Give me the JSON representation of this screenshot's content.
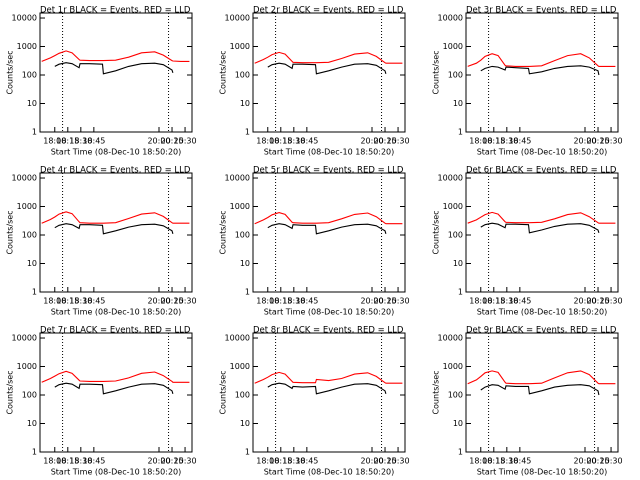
{
  "chart_data": [
    {
      "type": "line",
      "title": "Det 1r BLACK = Events, RED = LLD",
      "xlabel": "Start Time (08-Dec-10 18:50:20)",
      "ylabel": "Counts/sec",
      "log_y": true,
      "x": [
        "17:45",
        "17:55",
        "18:00",
        "18:05",
        "18:13",
        "18:20",
        "18:28",
        "18:29",
        "18:40",
        "18:55",
        "18:56",
        "19:10",
        "19:25",
        "19:40",
        "19:55",
        "20:05",
        "20:15",
        "20:16",
        "20:25",
        "20:35"
      ],
      "series": [
        {
          "name": "LLD",
          "color": "#ff0000",
          "values": [
            300,
            400,
            480,
            580,
            700,
            600,
            350,
            330,
            320,
            320,
            320,
            330,
            420,
            600,
            650,
            500,
            320,
            310,
            300,
            300
          ]
        },
        {
          "name": "Events",
          "color": "#000000",
          "values": [
            null,
            null,
            200,
            240,
            270,
            250,
            180,
            250,
            250,
            240,
            110,
            140,
            200,
            250,
            260,
            230,
            150,
            120,
            null,
            null
          ]
        }
      ],
      "xlim": [
        "17:43",
        "20:38"
      ],
      "xticks": [
        "18:00",
        "18:15",
        "18:30",
        "18:45",
        "20:00",
        "20:15",
        "20:30"
      ],
      "ylim": [
        1,
        15000
      ],
      "yticks": [
        1,
        10,
        100,
        1000,
        10000
      ],
      "vlines": [
        "18:09",
        "20:11"
      ]
    },
    {
      "type": "line",
      "title": "Det 2r BLACK = Events, RED = LLD",
      "xlabel": "Start Time (08-Dec-10 18:50:20)",
      "ylabel": "Counts/sec",
      "log_y": true,
      "x": [
        "17:45",
        "17:55",
        "18:00",
        "18:05",
        "18:13",
        "18:20",
        "18:28",
        "18:29",
        "18:40",
        "18:55",
        "18:56",
        "19:10",
        "19:25",
        "19:40",
        "19:55",
        "20:05",
        "20:15",
        "20:16",
        "20:25",
        "20:35"
      ],
      "series": [
        {
          "name": "LLD",
          "color": "#ff0000",
          "values": [
            260,
            350,
            420,
            520,
            620,
            540,
            300,
            280,
            270,
            270,
            270,
            280,
            380,
            540,
            600,
            450,
            270,
            260,
            260,
            260
          ]
        },
        {
          "name": "Events",
          "color": "#000000",
          "values": [
            null,
            null,
            190,
            230,
            260,
            240,
            170,
            240,
            240,
            230,
            110,
            140,
            190,
            240,
            250,
            220,
            140,
            110,
            null,
            null
          ]
        }
      ],
      "xlim": [
        "17:43",
        "20:38"
      ],
      "xticks": [
        "18:00",
        "18:15",
        "18:30",
        "18:45",
        "20:00",
        "20:15",
        "20:30"
      ],
      "ylim": [
        1,
        15000
      ],
      "yticks": [
        1,
        10,
        100,
        1000,
        10000
      ],
      "vlines": [
        "18:09",
        "20:11"
      ]
    },
    {
      "type": "line",
      "title": "Det 3r BLACK = Events, RED = LLD",
      "xlabel": "Start Time (08-Dec-10 18:50:20)",
      "ylabel": "Counts/sec",
      "log_y": true,
      "x": [
        "17:45",
        "17:55",
        "18:00",
        "18:05",
        "18:13",
        "18:20",
        "18:28",
        "18:29",
        "18:40",
        "18:55",
        "18:56",
        "19:10",
        "19:25",
        "19:40",
        "19:55",
        "20:05",
        "20:15",
        "20:16",
        "20:25",
        "20:35"
      ],
      "series": [
        {
          "name": "LLD",
          "color": "#ff0000",
          "values": [
            200,
            260,
            330,
            450,
            560,
            480,
            220,
            210,
            200,
            200,
            200,
            210,
            320,
            480,
            560,
            400,
            210,
            200,
            200,
            200
          ]
        },
        {
          "name": "Events",
          "color": "#000000",
          "values": [
            null,
            null,
            140,
            170,
            200,
            190,
            150,
            190,
            180,
            170,
            110,
            130,
            170,
            200,
            210,
            190,
            140,
            100,
            null,
            null
          ]
        }
      ],
      "xlim": [
        "17:43",
        "20:38"
      ],
      "xticks": [
        "18:00",
        "18:15",
        "18:30",
        "18:45",
        "20:00",
        "20:15",
        "20:30"
      ],
      "ylim": [
        1,
        15000
      ],
      "yticks": [
        1,
        10,
        100,
        1000,
        10000
      ],
      "vlines": [
        "18:09",
        "20:11"
      ]
    },
    {
      "type": "line",
      "title": "Det 4r BLACK = Events, RED = LLD",
      "xlabel": "Start Time (08-Dec-10 18:50:20)",
      "ylabel": "Counts/sec",
      "log_y": true,
      "x": [
        "17:45",
        "17:55",
        "18:00",
        "18:05",
        "18:13",
        "18:20",
        "18:28",
        "18:29",
        "18:40",
        "18:55",
        "18:56",
        "19:10",
        "19:25",
        "19:40",
        "19:55",
        "20:05",
        "20:15",
        "20:16",
        "20:25",
        "20:35"
      ],
      "series": [
        {
          "name": "LLD",
          "color": "#ff0000",
          "values": [
            260,
            350,
            430,
            540,
            650,
            560,
            290,
            270,
            260,
            260,
            260,
            270,
            380,
            540,
            600,
            450,
            270,
            260,
            260,
            260
          ]
        },
        {
          "name": "Events",
          "color": "#000000",
          "values": [
            null,
            null,
            180,
            220,
            250,
            230,
            170,
            230,
            230,
            220,
            110,
            140,
            190,
            230,
            240,
            210,
            140,
            110,
            null,
            null
          ]
        }
      ],
      "xlim": [
        "17:43",
        "20:38"
      ],
      "xticks": [
        "18:00",
        "18:15",
        "18:30",
        "18:45",
        "20:00",
        "20:15",
        "20:30"
      ],
      "ylim": [
        1,
        15000
      ],
      "yticks": [
        1,
        10,
        100,
        1000,
        10000
      ],
      "vlines": [
        "18:09",
        "20:11"
      ]
    },
    {
      "type": "line",
      "title": "Det 5r BLACK = Events, RED = LLD",
      "xlabel": "Start Time (08-Dec-10 18:50:20)",
      "ylabel": "Counts/sec",
      "log_y": true,
      "x": [
        "17:45",
        "17:55",
        "18:00",
        "18:05",
        "18:13",
        "18:20",
        "18:28",
        "18:29",
        "18:40",
        "18:55",
        "18:56",
        "19:10",
        "19:25",
        "19:40",
        "19:55",
        "20:05",
        "20:15",
        "20:16",
        "20:25",
        "20:35"
      ],
      "series": [
        {
          "name": "LLD",
          "color": "#ff0000",
          "values": [
            250,
            340,
            410,
            510,
            610,
            530,
            280,
            270,
            260,
            260,
            260,
            270,
            370,
            530,
            590,
            440,
            260,
            250,
            250,
            250
          ]
        },
        {
          "name": "Events",
          "color": "#000000",
          "values": [
            null,
            null,
            180,
            220,
            250,
            230,
            170,
            230,
            220,
            220,
            110,
            140,
            190,
            230,
            240,
            210,
            140,
            110,
            null,
            null
          ]
        }
      ],
      "xlim": [
        "17:43",
        "20:38"
      ],
      "xticks": [
        "18:00",
        "18:15",
        "18:30",
        "18:45",
        "20:00",
        "20:15",
        "20:30"
      ],
      "ylim": [
        1,
        15000
      ],
      "yticks": [
        1,
        10,
        100,
        1000,
        10000
      ],
      "vlines": [
        "18:09",
        "20:11"
      ]
    },
    {
      "type": "line",
      "title": "Det 6r BLACK = Events, RED = LLD",
      "xlabel": "Start Time (08-Dec-10 18:50:20)",
      "ylabel": "Counts/sec",
      "log_y": true,
      "x": [
        "17:45",
        "17:55",
        "18:00",
        "18:05",
        "18:13",
        "18:20",
        "18:28",
        "18:29",
        "18:40",
        "18:55",
        "18:56",
        "19:10",
        "19:25",
        "19:40",
        "19:55",
        "20:05",
        "20:15",
        "20:16",
        "20:25",
        "20:35"
      ],
      "series": [
        {
          "name": "LLD",
          "color": "#ff0000",
          "values": [
            260,
            340,
            420,
            520,
            620,
            540,
            290,
            280,
            270,
            270,
            270,
            280,
            370,
            520,
            600,
            440,
            270,
            260,
            260,
            260
          ]
        },
        {
          "name": "Events",
          "color": "#000000",
          "values": [
            null,
            null,
            190,
            230,
            260,
            240,
            180,
            240,
            240,
            230,
            120,
            150,
            200,
            240,
            250,
            220,
            150,
            120,
            null,
            null
          ]
        }
      ],
      "xlim": [
        "17:43",
        "20:38"
      ],
      "xticks": [
        "18:00",
        "18:15",
        "18:30",
        "18:45",
        "20:00",
        "20:15",
        "20:30"
      ],
      "ylim": [
        1,
        15000
      ],
      "yticks": [
        1,
        10,
        100,
        1000,
        10000
      ],
      "vlines": [
        "18:09",
        "20:11"
      ]
    },
    {
      "type": "line",
      "title": "Det 7r BLACK = Events, RED = LLD",
      "xlabel": "Start Time (08-Dec-10 18:50:20)",
      "ylabel": "Counts/sec",
      "log_y": true,
      "x": [
        "17:45",
        "17:55",
        "18:00",
        "18:05",
        "18:13",
        "18:20",
        "18:28",
        "18:29",
        "18:40",
        "18:55",
        "18:56",
        "19:10",
        "19:25",
        "19:40",
        "19:55",
        "20:05",
        "20:15",
        "20:16",
        "20:25",
        "20:35"
      ],
      "series": [
        {
          "name": "LLD",
          "color": "#ff0000",
          "values": [
            280,
            380,
            460,
            560,
            680,
            580,
            330,
            310,
            300,
            300,
            300,
            310,
            400,
            580,
            640,
            480,
            300,
            280,
            280,
            280
          ]
        },
        {
          "name": "Events",
          "color": "#000000",
          "values": [
            null,
            null,
            190,
            230,
            260,
            240,
            170,
            240,
            240,
            230,
            110,
            140,
            190,
            240,
            250,
            220,
            140,
            110,
            null,
            null
          ]
        }
      ],
      "xlim": [
        "17:43",
        "20:38"
      ],
      "xticks": [
        "18:00",
        "18:15",
        "18:30",
        "18:45",
        "20:00",
        "20:15",
        "20:30"
      ],
      "ylim": [
        1,
        15000
      ],
      "yticks": [
        1,
        10,
        100,
        1000,
        10000
      ],
      "vlines": [
        "18:09",
        "20:11"
      ]
    },
    {
      "type": "line",
      "title": "Det 8r BLACK = Events, RED = LLD",
      "xlabel": "Start Time (08-Dec-10 18:50:20)",
      "ylabel": "Counts/sec",
      "log_y": true,
      "x": [
        "17:45",
        "17:55",
        "18:00",
        "18:05",
        "18:13",
        "18:20",
        "18:28",
        "18:29",
        "18:40",
        "18:55",
        "18:56",
        "19:10",
        "19:25",
        "19:40",
        "19:55",
        "20:05",
        "20:15",
        "20:16",
        "20:25",
        "20:35"
      ],
      "series": [
        {
          "name": "LLD",
          "color": "#ff0000",
          "values": [
            260,
            350,
            420,
            520,
            620,
            540,
            300,
            280,
            270,
            270,
            350,
            320,
            380,
            540,
            600,
            450,
            270,
            260,
            260,
            260
          ]
        },
        {
          "name": "Events",
          "color": "#000000",
          "values": [
            null,
            null,
            190,
            230,
            260,
            240,
            170,
            200,
            190,
            200,
            110,
            140,
            190,
            240,
            250,
            220,
            140,
            110,
            null,
            null
          ]
        }
      ],
      "xlim": [
        "17:43",
        "20:38"
      ],
      "xticks": [
        "18:00",
        "18:15",
        "18:30",
        "18:45",
        "20:00",
        "20:15",
        "20:30"
      ],
      "ylim": [
        1,
        15000
      ],
      "yticks": [
        1,
        10,
        100,
        1000,
        10000
      ],
      "vlines": [
        "18:09",
        "20:11"
      ]
    },
    {
      "type": "line",
      "title": "Det 9r BLACK = Events, RED = LLD",
      "xlabel": "Start Time (08-Dec-10 18:50:20)",
      "ylabel": "Counts/sec",
      "log_y": true,
      "x": [
        "17:45",
        "17:55",
        "18:00",
        "18:05",
        "18:13",
        "18:20",
        "18:28",
        "18:29",
        "18:40",
        "18:55",
        "18:56",
        "19:10",
        "19:25",
        "19:40",
        "19:55",
        "20:05",
        "20:15",
        "20:16",
        "20:25",
        "20:35"
      ],
      "series": [
        {
          "name": "LLD",
          "color": "#ff0000",
          "values": [
            250,
            340,
            450,
            600,
            700,
            620,
            280,
            260,
            250,
            250,
            250,
            260,
            400,
            600,
            700,
            520,
            260,
            250,
            250,
            250
          ]
        },
        {
          "name": "Events",
          "color": "#000000",
          "values": [
            null,
            null,
            150,
            190,
            230,
            220,
            160,
            210,
            200,
            200,
            110,
            140,
            190,
            220,
            230,
            210,
            140,
            100,
            null,
            null
          ]
        }
      ],
      "xlim": [
        "17:43",
        "20:38"
      ],
      "xticks": [
        "18:00",
        "18:15",
        "18:30",
        "18:45",
        "20:00",
        "20:15",
        "20:30"
      ],
      "ylim": [
        1,
        15000
      ],
      "yticks": [
        1,
        10,
        100,
        1000,
        10000
      ],
      "vlines": [
        "18:09",
        "20:11"
      ]
    }
  ]
}
